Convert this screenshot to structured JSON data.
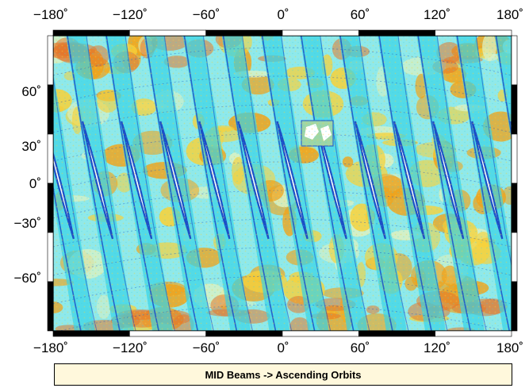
{
  "map": {
    "caption": "MID Beams -> Ascending Orbits",
    "colors": {
      "background": "#8fe9ea",
      "cyan": "#37d3e6",
      "light": "#d9f1c4",
      "yellow": "#f6d23c",
      "orange": "#f0a21a",
      "dark_orange": "#e6762a",
      "swath_blue": "#1d4fc6",
      "gap_white": "#ffffff",
      "green_patch": "#9ed6a6"
    }
  },
  "axes": {
    "lon_ticks_top": [
      "−180˚",
      "−120˚",
      "−60˚",
      "0˚",
      "60˚",
      "120˚",
      "180˚"
    ],
    "lon_ticks_bottom": [
      "−180˚",
      "−120˚",
      "−60˚",
      "0˚",
      "60˚",
      "120˚",
      "180˚"
    ],
    "lat_ticks": [
      "60˚",
      "30˚",
      "0˚",
      "−30˚",
      "−60˚"
    ],
    "lon_range": [
      -180,
      180
    ],
    "lat_range": [
      -90,
      90
    ]
  }
}
